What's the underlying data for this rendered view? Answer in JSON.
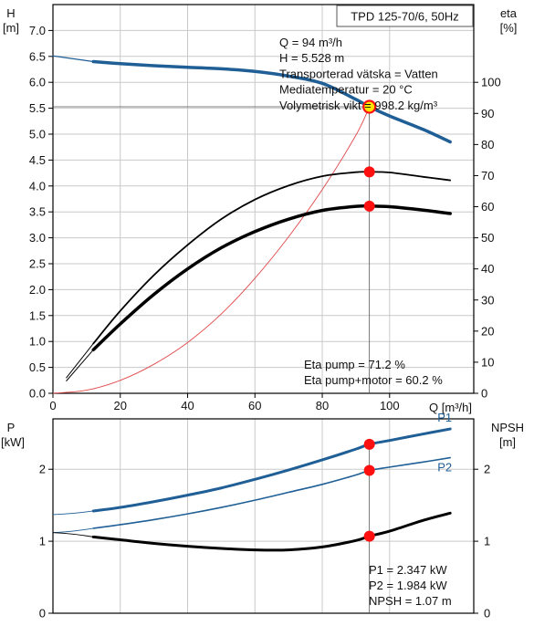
{
  "title": "TPD 125-70/6, 50Hz",
  "colors": {
    "blue": "#1f5f96",
    "red_line": "#e0484a",
    "marker": "#ff1010",
    "marker_op": "#ffe600",
    "black": "#000000",
    "grid": "#c9c9c9"
  },
  "info_top": [
    "Q = 94 m³/h",
    "H = 5.528 m",
    "Transporterad vätska = Vatten",
    "Mediatemperatur = 20 °C",
    "Volymetrisk vikt = 998.2 kg/m³"
  ],
  "eta_info": [
    "Eta pump = 71.2 %",
    "Eta pump+motor = 60.2 %"
  ],
  "bottom_info": [
    "P1 = 2.347 kW",
    "P2 = 1.984 kW",
    "NPSH = 1.07 m"
  ],
  "chart_data": [
    {
      "type": "line",
      "xlabel": "Q [m³/h]",
      "ylabel": "H\n[m]",
      "y2label": "eta\n[%]",
      "xlim": [
        0,
        125
      ],
      "ylim": [
        0,
        7.5
      ],
      "y2lim": [
        0,
        125
      ],
      "xticks": [
        0,
        20,
        40,
        60,
        80,
        100
      ],
      "yticks": [
        "0.0",
        "0.5",
        "1.0",
        "1.5",
        "2.0",
        "2.5",
        "3.0",
        "3.5",
        "4.0",
        "4.5",
        "5.0",
        "5.5",
        "6.0",
        "6.5",
        "7.0"
      ],
      "y2ticks": [
        "0",
        "10",
        "20",
        "30",
        "40",
        "50",
        "60",
        "70",
        "80",
        "90",
        "100"
      ],
      "grid": true,
      "series": [
        {
          "key": "H",
          "axis": "left",
          "x": [
            0,
            12,
            20,
            30,
            40,
            50,
            60,
            70,
            80,
            90,
            94,
            100,
            110,
            118
          ],
          "y": [
            6.51,
            6.4,
            6.36,
            6.32,
            6.29,
            6.26,
            6.21,
            6.12,
            5.98,
            5.67,
            5.528,
            5.35,
            5.09,
            4.85
          ]
        },
        {
          "key": "system",
          "axis": "left",
          "x": [
            0,
            10,
            20,
            30,
            40,
            50,
            60,
            70,
            80,
            90,
            94
          ],
          "y": [
            0,
            0.06,
            0.25,
            0.56,
            0.98,
            1.53,
            2.22,
            3.02,
            3.93,
            4.98,
            5.528
          ]
        },
        {
          "key": "eta_pump",
          "axis": "right",
          "x": [
            4,
            12,
            20,
            30,
            40,
            50,
            60,
            70,
            80,
            90,
            94,
            100,
            110,
            118
          ],
          "y": [
            5,
            16,
            26.5,
            38,
            47.7,
            56,
            62.3,
            66.8,
            69.8,
            71.1,
            71.2,
            71.0,
            69.6,
            68.5
          ]
        },
        {
          "key": "eta_pump_motor",
          "axis": "right",
          "x": [
            4,
            12,
            20,
            30,
            40,
            50,
            60,
            70,
            80,
            90,
            94,
            100,
            110,
            118
          ],
          "y": [
            4,
            14,
            22.3,
            31.8,
            40,
            46.8,
            52,
            56,
            58.8,
            60.1,
            60.2,
            60.0,
            58.9,
            57.8
          ]
        }
      ],
      "points": [
        {
          "x": 94,
          "y": 5.528,
          "axis": "left",
          "operating": true
        },
        {
          "x": 94,
          "y": 71.2,
          "axis": "right"
        },
        {
          "x": 94,
          "y": 60.2,
          "axis": "right"
        }
      ],
      "operating_x": 94
    },
    {
      "type": "line",
      "ylabel": "P\n[kW]",
      "y2label": "NPSH\n[m]",
      "xlim": [
        0,
        125
      ],
      "ylim": [
        0,
        2.7
      ],
      "y2lim": [
        0,
        2.7
      ],
      "yticks": [
        "0",
        "1",
        "2"
      ],
      "y2ticks": [
        "0",
        "1",
        "2"
      ],
      "grid": true,
      "series": [
        {
          "key": "P1",
          "name": "P1",
          "axis": "left",
          "x": [
            12,
            20,
            30,
            40,
            50,
            60,
            70,
            80,
            90,
            94,
            100,
            110,
            118
          ],
          "y": [
            1.42,
            1.47,
            1.55,
            1.64,
            1.74,
            1.86,
            1.99,
            2.13,
            2.28,
            2.347,
            2.4,
            2.49,
            2.56
          ]
        },
        {
          "key": "P2",
          "name": "P2",
          "axis": "left",
          "x": [
            12,
            20,
            30,
            40,
            50,
            60,
            70,
            80,
            90,
            94,
            100,
            110,
            118
          ],
          "y": [
            1.18,
            1.23,
            1.3,
            1.38,
            1.47,
            1.57,
            1.68,
            1.79,
            1.92,
            1.984,
            2.03,
            2.1,
            2.16
          ]
        },
        {
          "key": "NPSH",
          "axis": "right",
          "x": [
            12,
            20,
            30,
            40,
            50,
            60,
            70,
            80,
            90,
            94,
            100,
            110,
            118
          ],
          "y": [
            1.06,
            1.02,
            0.97,
            0.93,
            0.9,
            0.88,
            0.88,
            0.92,
            1.01,
            1.07,
            1.14,
            1.29,
            1.39
          ]
        }
      ],
      "points": [
        {
          "x": 94,
          "y": 2.347,
          "axis": "left"
        },
        {
          "x": 94,
          "y": 1.984,
          "axis": "left"
        },
        {
          "x": 94,
          "y": 1.07,
          "axis": "right"
        }
      ],
      "operating_x": 94
    }
  ]
}
